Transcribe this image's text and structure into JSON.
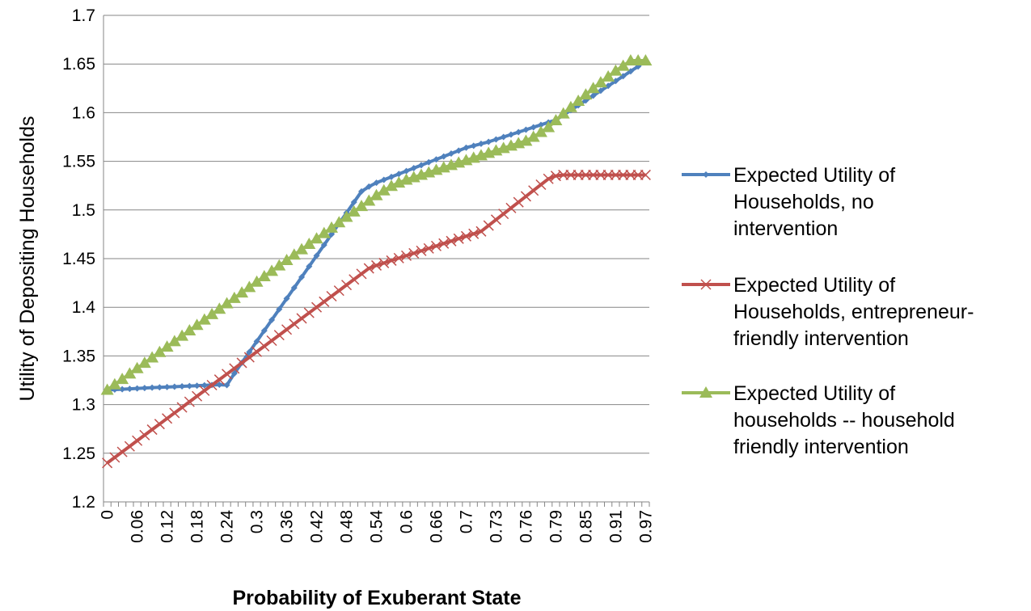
{
  "chart_data": {
    "type": "line",
    "title": "",
    "xlabel": "Probability of Exuberant State",
    "ylabel": "Utility of Depositing Households",
    "ylim": [
      1.2,
      1.7
    ],
    "yticks": [
      "1.2",
      "1.25",
      "1.3",
      "1.35",
      "1.4",
      "1.45",
      "1.5",
      "1.55",
      "1.6",
      "1.65",
      "1.7"
    ],
    "xtick_labels": [
      "0",
      "0.06",
      "0.12",
      "0.18",
      "0.24",
      "0.3",
      "0.36",
      "0.42",
      "0.48",
      "0.54",
      "0.6",
      "0.66",
      "0.7",
      "0.73",
      "0.76",
      "0.79",
      "0.85",
      "0.91",
      "0.97"
    ],
    "x": [
      0,
      0.015,
      0.03,
      0.045,
      0.06,
      0.075,
      0.09,
      0.105,
      0.12,
      0.135,
      0.15,
      0.165,
      0.18,
      0.195,
      0.21,
      0.225,
      0.24,
      0.255,
      0.27,
      0.285,
      0.3,
      0.315,
      0.33,
      0.345,
      0.36,
      0.375,
      0.39,
      0.405,
      0.42,
      0.435,
      0.45,
      0.465,
      0.48,
      0.495,
      0.51,
      0.525,
      0.54,
      0.555,
      0.57,
      0.585,
      0.6,
      0.615,
      0.63,
      0.645,
      0.66,
      0.67,
      0.68,
      0.69,
      0.7,
      0.7075,
      0.715,
      0.7225,
      0.73,
      0.7375,
      0.745,
      0.7525,
      0.76,
      0.7675,
      0.775,
      0.7825,
      0.79,
      0.805,
      0.82,
      0.835,
      0.85,
      0.865,
      0.88,
      0.895,
      0.91,
      0.925,
      0.94,
      0.955,
      0.97
    ],
    "grid": true,
    "legend_position": "right",
    "series": [
      {
        "name": "Expected Utility of Households, no intervention",
        "color": "#4f81bd",
        "marker": "diamond",
        "values": [
          1.315,
          1.3154,
          1.3158,
          1.3162,
          1.3166,
          1.317,
          1.3174,
          1.3177,
          1.318,
          1.3184,
          1.3188,
          1.3191,
          1.3194,
          1.3198,
          1.3201,
          1.3204,
          1.32,
          1.332,
          1.343,
          1.354,
          1.365,
          1.376,
          1.387,
          1.398,
          1.409,
          1.42,
          1.431,
          1.442,
          1.453,
          1.464,
          1.475,
          1.486,
          1.497,
          1.508,
          1.519,
          1.524,
          1.528,
          1.531,
          1.534,
          1.537,
          1.54,
          1.543,
          1.546,
          1.549,
          1.552,
          1.555,
          1.558,
          1.561,
          1.564,
          1.566,
          1.568,
          1.57,
          1.5725,
          1.575,
          1.5775,
          1.58,
          1.5825,
          1.585,
          1.5875,
          1.59,
          1.5925,
          1.5975,
          1.6025,
          1.6075,
          1.6125,
          1.6175,
          1.6225,
          1.6275,
          1.6325,
          1.6375,
          1.6425,
          1.6475,
          1.6535
        ]
      },
      {
        "name": "Expected Utility of Households, entrepreneur-friendly intervention",
        "color": "#c0504d",
        "marker": "x",
        "values": [
          1.24,
          1.2457,
          1.2514,
          1.2571,
          1.2629,
          1.2686,
          1.2743,
          1.28,
          1.2857,
          1.2914,
          1.2971,
          1.3029,
          1.3086,
          1.3143,
          1.32,
          1.3257,
          1.3314,
          1.3371,
          1.3429,
          1.3486,
          1.3543,
          1.36,
          1.3657,
          1.3714,
          1.3771,
          1.3829,
          1.3886,
          1.3943,
          1.4,
          1.4057,
          1.4114,
          1.4171,
          1.4229,
          1.4286,
          1.4343,
          1.44,
          1.443,
          1.4455,
          1.448,
          1.4505,
          1.453,
          1.4555,
          1.458,
          1.4605,
          1.463,
          1.4655,
          1.468,
          1.4705,
          1.473,
          1.4755,
          1.478,
          1.484,
          1.49,
          1.496,
          1.502,
          1.508,
          1.514,
          1.52,
          1.526,
          1.532,
          1.535,
          1.536,
          1.536,
          1.536,
          1.536,
          1.536,
          1.536,
          1.536,
          1.536,
          1.536,
          1.536,
          1.536,
          1.536
        ]
      },
      {
        "name": "Expected Utility of households -- household friendly intervention",
        "color": "#9bbb59",
        "marker": "triangle",
        "values": [
          1.315,
          1.3206,
          1.3261,
          1.3317,
          1.3372,
          1.3428,
          1.3483,
          1.3539,
          1.3594,
          1.365,
          1.3706,
          1.3761,
          1.3817,
          1.3872,
          1.3928,
          1.3983,
          1.4039,
          1.4094,
          1.415,
          1.4206,
          1.4261,
          1.4317,
          1.4372,
          1.4428,
          1.4483,
          1.4539,
          1.4594,
          1.465,
          1.4706,
          1.4761,
          1.4817,
          1.4872,
          1.4928,
          1.4983,
          1.5039,
          1.5094,
          1.515,
          1.52,
          1.5245,
          1.528,
          1.531,
          1.5335,
          1.536,
          1.5385,
          1.541,
          1.5435,
          1.546,
          1.5485,
          1.551,
          1.5535,
          1.556,
          1.5585,
          1.561,
          1.5635,
          1.566,
          1.5685,
          1.571,
          1.575,
          1.58,
          1.585,
          1.592,
          1.599,
          1.6055,
          1.612,
          1.6185,
          1.625,
          1.631,
          1.637,
          1.643,
          1.648,
          1.6535,
          1.6535,
          1.6535
        ]
      }
    ]
  }
}
